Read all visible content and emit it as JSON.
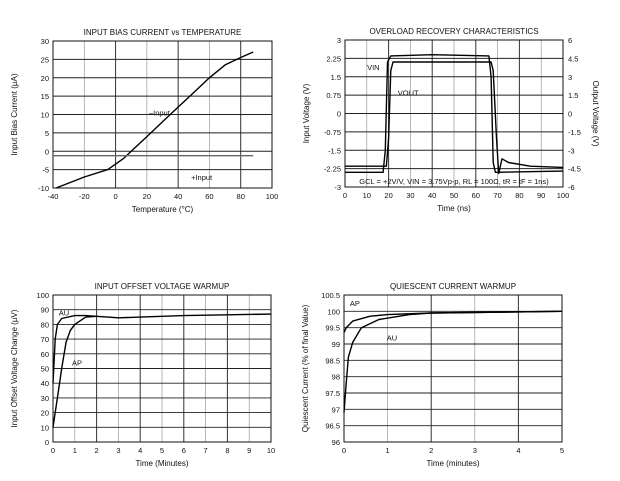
{
  "chart_data": [
    {
      "type": "line",
      "title": "INPUT BIAS CURRENT vs TEMPERATURE",
      "xlabel": "Temperature (°C)",
      "ylabel": "Input Bias Current (µA)",
      "xlim": [
        -40,
        100
      ],
      "ylim": [
        -10,
        30
      ],
      "xticks": [
        -40,
        -20,
        0,
        20,
        40,
        60,
        80,
        100
      ],
      "yticks": [
        -10,
        -5,
        0,
        5,
        10,
        15,
        20,
        25,
        30
      ],
      "grid": true,
      "series": [
        {
          "name": "–Input",
          "x": [
            -38,
            -20,
            -5,
            5,
            10,
            20,
            30,
            40,
            50,
            60,
            70,
            80,
            88
          ],
          "y": [
            -10,
            -7,
            -5,
            -2,
            0,
            4,
            8,
            12,
            16,
            20,
            23.5,
            25.5,
            27
          ]
        },
        {
          "name": "+Input",
          "x": [
            -40,
            88
          ],
          "y": [
            -1.2,
            -1.2
          ]
        }
      ],
      "annotations": [
        {
          "text": "–Input",
          "x": 28,
          "y": 10.5
        },
        {
          "text": "+Input",
          "x": 55,
          "y": -7
        }
      ]
    },
    {
      "type": "line",
      "title": "OVERLOAD RECOVERY CHARACTERISTICS",
      "xlabel": "Time (ns)",
      "ylabel": "Input Voltage (V)",
      "y2label": "Output Voltage (V)",
      "xlim": [
        0,
        100
      ],
      "ylim": [
        -3,
        3
      ],
      "y2lim": [
        -6,
        6
      ],
      "xticks": [
        0,
        10,
        20,
        30,
        40,
        50,
        60,
        70,
        80,
        90,
        100
      ],
      "yticks": [
        -3,
        -2.25,
        -1.5,
        -0.75,
        0,
        0.75,
        1.5,
        2.25,
        3
      ],
      "y2ticks": [
        -6,
        -4.5,
        -3,
        -1.5,
        0,
        1.5,
        3,
        4.5,
        6
      ],
      "grid": true,
      "series": [
        {
          "name": "VIN",
          "axis": "left",
          "x": [
            0,
            17.5,
            18.5,
            19.5,
            21,
            40,
            66,
            67,
            68,
            69,
            100
          ],
          "y": [
            -2.4,
            -2.4,
            -1.5,
            2.1,
            2.35,
            2.4,
            2.35,
            1.5,
            -2.0,
            -2.4,
            -2.35
          ]
        },
        {
          "name": "VOUT",
          "axis": "right",
          "x": [
            0,
            19,
            20,
            21,
            22,
            40,
            67,
            68,
            69.5,
            70.5,
            72,
            75,
            85,
            100
          ],
          "y": [
            -4.3,
            -4.3,
            -2,
            3.5,
            4.2,
            4.2,
            4.2,
            3.5,
            -2,
            -4.9,
            -3.7,
            -4.0,
            -4.3,
            -4.4
          ]
        }
      ],
      "annotations": [
        {
          "text": "VIN",
          "x": 13,
          "y": 1.9
        },
        {
          "text": "VOUT",
          "x": 29,
          "y": 0.85
        },
        {
          "text": "GCL = +2V/V, VIN = 3.75Vp-p, RL = 100Ω, tR = tF = 1ns)",
          "x": 50,
          "y": -2.75
        }
      ]
    },
    {
      "type": "line",
      "title": "INPUT OFFSET VOLTAGE WARMUP",
      "xlabel": "Time (Minutes)",
      "ylabel": "Input Offset Voltage Change (µV)",
      "xlim": [
        0,
        10
      ],
      "ylim": [
        0,
        100
      ],
      "xticks": [
        0,
        1,
        2,
        3,
        4,
        5,
        6,
        7,
        8,
        9,
        10
      ],
      "yticks": [
        0,
        10,
        20,
        30,
        40,
        50,
        60,
        70,
        80,
        90,
        100
      ],
      "grid": true,
      "series": [
        {
          "name": "AU",
          "x": [
            0,
            0.1,
            0.2,
            0.4,
            1,
            1.5,
            2,
            3,
            4,
            6,
            8,
            10
          ],
          "y": [
            40,
            70,
            80,
            84,
            86,
            86,
            85.5,
            84.5,
            85,
            86,
            86.5,
            87
          ]
        },
        {
          "name": "AP",
          "x": [
            0,
            0.2,
            0.4,
            0.6,
            0.8,
            1,
            1.5,
            2
          ],
          "y": [
            10,
            30,
            50,
            68,
            76,
            80,
            85,
            85.5
          ]
        }
      ],
      "annotations": [
        {
          "text": "AU",
          "x": 0.5,
          "y": 88
        },
        {
          "text": "AP",
          "x": 1.1,
          "y": 54
        }
      ]
    },
    {
      "type": "line",
      "title": "QUIESCENT CURRENT WARMUP",
      "xlabel": "Time (minutes)",
      "ylabel": "Quiescent Current (% of final Value)",
      "xlim": [
        0,
        5
      ],
      "ylim": [
        96,
        100.5
      ],
      "xticks": [
        0,
        1,
        2,
        3,
        4,
        5
      ],
      "yticks": [
        96,
        96.5,
        97,
        97.5,
        98,
        98.5,
        99,
        99.5,
        100,
        100.5
      ],
      "grid": true,
      "series": [
        {
          "name": "AP",
          "x": [
            0,
            0.05,
            0.2,
            0.6,
            1,
            2,
            5
          ],
          "y": [
            99.35,
            99.5,
            99.7,
            99.85,
            99.9,
            99.95,
            100
          ]
        },
        {
          "name": "AU",
          "x": [
            0,
            0.05,
            0.1,
            0.2,
            0.4,
            0.8,
            1.5,
            2,
            5
          ],
          "y": [
            96.9,
            97.8,
            98.6,
            99.05,
            99.5,
            99.75,
            99.9,
            99.95,
            100
          ]
        }
      ],
      "annotations": [
        {
          "text": "AP",
          "x": 0.25,
          "y": 100.25
        },
        {
          "text": "AU",
          "x": 1.1,
          "y": 99.2
        }
      ]
    }
  ]
}
